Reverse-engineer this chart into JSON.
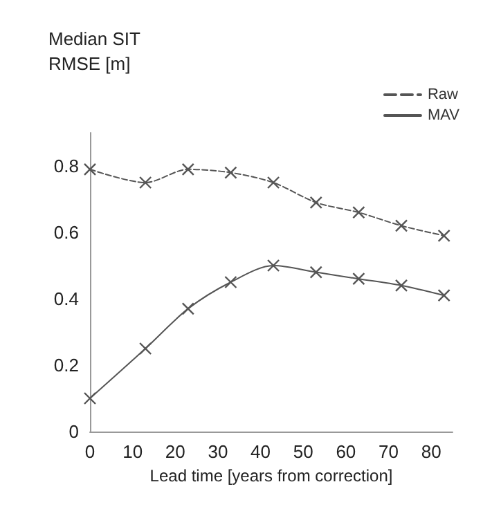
{
  "chart_data": {
    "type": "line",
    "ylabel": "Median SIT\nRMSE [m]",
    "xlabel": "Lead time [years from correction]",
    "x": [
      0,
      13,
      23,
      33,
      43,
      53,
      63,
      73,
      83
    ],
    "series": [
      {
        "name": "Raw",
        "color": "#555555",
        "line_style": "dashed",
        "values": [
          0.79,
          0.75,
          0.79,
          0.78,
          0.75,
          0.69,
          0.66,
          0.62,
          0.59
        ]
      },
      {
        "name": "MAV",
        "color": "#555555",
        "line_style": "solid",
        "values": [
          0.1,
          0.25,
          0.37,
          0.45,
          0.5,
          0.48,
          0.46,
          0.44,
          0.41
        ]
      }
    ],
    "xlim": [
      0,
      85
    ],
    "xticks": [
      0,
      10,
      20,
      30,
      40,
      50,
      60,
      70,
      80
    ],
    "ylim": [
      0,
      0.9
    ],
    "yticks": [
      0,
      0.2,
      0.4,
      0.6,
      0.8
    ],
    "marker": "cross",
    "legend": "top right",
    "grid": false
  }
}
